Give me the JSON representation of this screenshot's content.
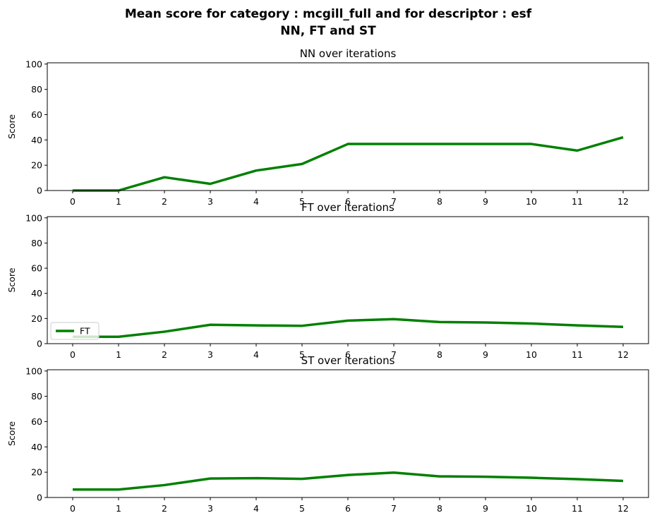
{
  "figure": {
    "title_line1": "Mean score for category : mcgill_full and for descriptor : esf",
    "title_line2": "NN, FT and ST"
  },
  "chart_data": [
    {
      "type": "line",
      "title": "NN over iterations",
      "xlabel": "",
      "ylabel": "Score",
      "x": [
        0,
        1,
        2,
        3,
        4,
        5,
        6,
        7,
        8,
        9,
        10,
        11,
        12
      ],
      "ylim": [
        0,
        101
      ],
      "yticks": [
        0,
        20,
        40,
        60,
        80,
        100
      ],
      "grid": false,
      "series": [
        {
          "name": "",
          "color": "#008000",
          "values": [
            0,
            0,
            10.5,
            5.3,
            15.8,
            21,
            36.8,
            36.8,
            36.8,
            36.8,
            36.8,
            31.6,
            42.1
          ]
        }
      ]
    },
    {
      "type": "line",
      "title": "FT over iterations",
      "xlabel": "",
      "ylabel": "Score",
      "x": [
        0,
        1,
        2,
        3,
        4,
        5,
        6,
        7,
        8,
        9,
        10,
        11,
        12
      ],
      "ylim": [
        0,
        101
      ],
      "yticks": [
        0,
        20,
        40,
        60,
        80,
        100
      ],
      "grid": false,
      "legend": {
        "placement": "lower-left",
        "entries": [
          "FT"
        ]
      },
      "series": [
        {
          "name": "FT",
          "color": "#008000",
          "values": [
            5.5,
            5.5,
            9.5,
            15,
            14.5,
            14.2,
            18.3,
            19.5,
            17.2,
            16.8,
            16,
            14.5,
            13.3
          ]
        }
      ]
    },
    {
      "type": "line",
      "title": "ST over iterations",
      "xlabel": "",
      "ylabel": "Score",
      "x": [
        0,
        1,
        2,
        3,
        4,
        5,
        6,
        7,
        8,
        9,
        10,
        11,
        12
      ],
      "ylim": [
        0,
        101
      ],
      "yticks": [
        0,
        20,
        40,
        60,
        80,
        100
      ],
      "grid": false,
      "series": [
        {
          "name": "",
          "color": "#008000",
          "values": [
            6.3,
            6.3,
            9.8,
            15,
            15.3,
            14.7,
            17.8,
            19.7,
            16.7,
            16.4,
            15.6,
            14.5,
            13.1
          ]
        }
      ]
    }
  ]
}
